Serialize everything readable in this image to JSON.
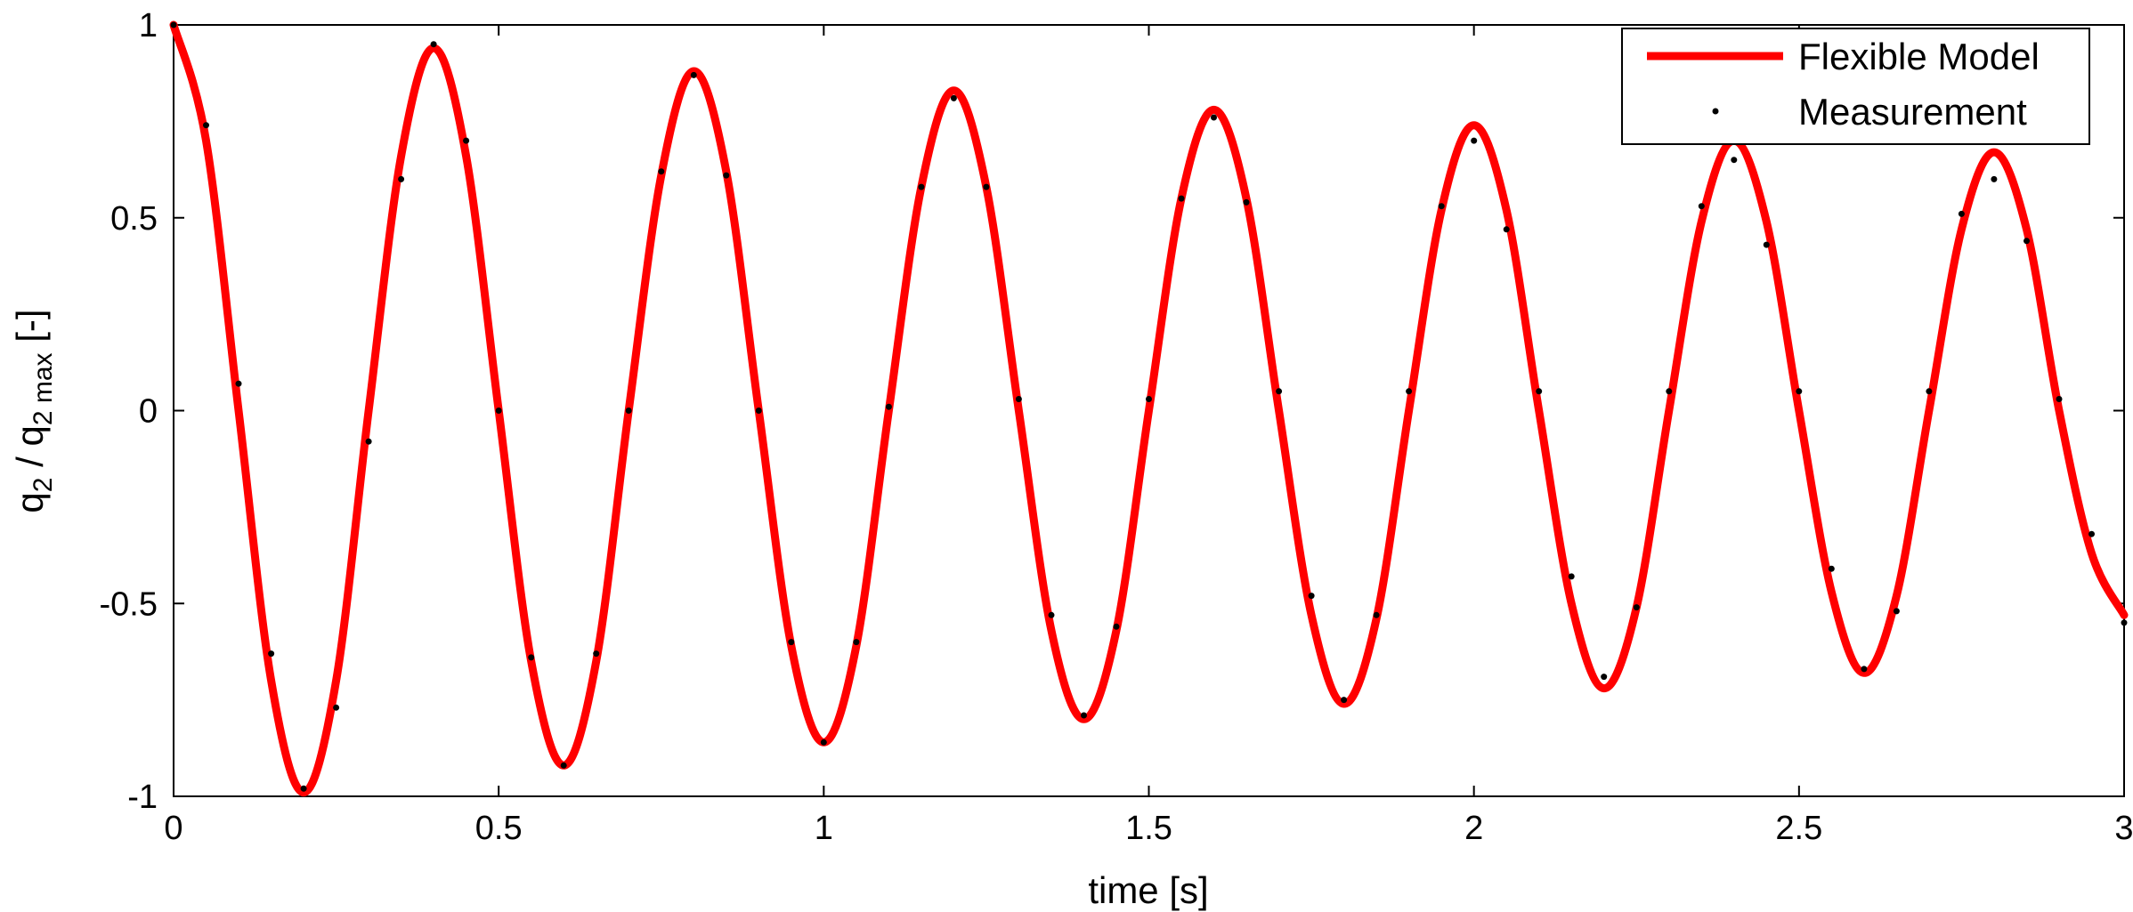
{
  "chart_data": {
    "type": "line",
    "title": "",
    "xlabel": "time [s]",
    "ylabel": {
      "base": "q",
      "sub1": "2",
      "mid": " / q",
      "sub2": "2 max",
      "tail": " [-]"
    },
    "xlim": [
      0,
      3
    ],
    "ylim": [
      -1,
      1
    ],
    "xticks": [
      0,
      0.5,
      1,
      1.5,
      2,
      2.5,
      3
    ],
    "xtick_labels": [
      "0",
      "0.5",
      "1",
      "1.5",
      "2",
      "2.5",
      "3"
    ],
    "yticks": [
      -1,
      -0.5,
      0,
      0.5,
      1
    ],
    "ytick_labels": [
      "-1",
      "-0.5",
      "0",
      "0.5",
      "1"
    ],
    "grid": false,
    "legend_position": "top-right",
    "series": [
      {
        "name": "Flexible Model",
        "style": "line",
        "color": "#ff0000",
        "x": [
          0,
          0.05,
          0.1,
          0.15,
          0.2,
          0.25,
          0.3,
          0.35,
          0.4,
          0.45,
          0.5,
          0.55,
          0.6,
          0.65,
          0.7,
          0.75,
          0.8,
          0.85,
          0.9,
          0.95,
          1.0,
          1.05,
          1.1,
          1.15,
          1.2,
          1.25,
          1.3,
          1.35,
          1.4,
          1.45,
          1.5,
          1.55,
          1.6,
          1.65,
          1.7,
          1.75,
          1.8,
          1.85,
          1.9,
          1.95,
          2.0,
          2.05,
          2.1,
          2.15,
          2.2,
          2.25,
          2.3,
          2.35,
          2.4,
          2.45,
          2.5,
          2.55,
          2.6,
          2.65,
          2.7,
          2.75,
          2.8,
          2.85,
          2.9,
          2.95,
          3.0
        ],
        "y": [
          1.0,
          0.7,
          0.0,
          -0.7,
          -0.99,
          -0.7,
          0.0,
          0.66,
          0.94,
          0.66,
          0.0,
          -0.65,
          -0.92,
          -0.65,
          0.0,
          0.61,
          0.88,
          0.62,
          0.0,
          -0.61,
          -0.86,
          -0.61,
          0.0,
          0.58,
          0.83,
          0.58,
          0.0,
          -0.57,
          -0.8,
          -0.57,
          0.0,
          0.55,
          0.78,
          0.55,
          0.0,
          -0.53,
          -0.76,
          -0.54,
          0.0,
          0.52,
          0.74,
          0.52,
          0.0,
          -0.5,
          -0.72,
          -0.51,
          0.0,
          0.49,
          0.7,
          0.49,
          0.0,
          -0.47,
          -0.68,
          -0.48,
          0.0,
          0.47,
          0.67,
          0.47,
          0.0,
          -0.37,
          -0.53
        ]
      },
      {
        "name": "Measurement",
        "style": "dots",
        "color": "#000000",
        "x": [
          0.0,
          0.05,
          0.1,
          0.15,
          0.2,
          0.25,
          0.3,
          0.35,
          0.4,
          0.45,
          0.5,
          0.55,
          0.6,
          0.65,
          0.7,
          0.75,
          0.8,
          0.85,
          0.9,
          0.95,
          1.0,
          1.05,
          1.1,
          1.15,
          1.2,
          1.25,
          1.3,
          1.35,
          1.4,
          1.45,
          1.5,
          1.55,
          1.6,
          1.65,
          1.7,
          1.75,
          1.8,
          1.85,
          1.9,
          1.95,
          2.0,
          2.05,
          2.1,
          2.15,
          2.2,
          2.25,
          2.3,
          2.35,
          2.4,
          2.45,
          2.5,
          2.55,
          2.6,
          2.65,
          2.7,
          2.75,
          2.8,
          2.85,
          2.9,
          2.95,
          3.0
        ],
        "y": [
          1.0,
          0.74,
          0.07,
          -0.63,
          -0.98,
          -0.77,
          -0.08,
          0.6,
          0.95,
          0.7,
          0.0,
          -0.64,
          -0.92,
          -0.63,
          0.0,
          0.62,
          0.87,
          0.61,
          0.0,
          -0.6,
          -0.86,
          -0.6,
          0.01,
          0.58,
          0.81,
          0.58,
          0.03,
          -0.53,
          -0.79,
          -0.56,
          0.03,
          0.55,
          0.76,
          0.54,
          0.05,
          -0.48,
          -0.75,
          -0.53,
          0.05,
          0.53,
          0.7,
          0.47,
          0.05,
          -0.43,
          -0.69,
          -0.51,
          0.05,
          0.53,
          0.65,
          0.43,
          0.05,
          -0.41,
          -0.67,
          -0.52,
          0.05,
          0.51,
          0.6,
          0.44,
          0.03,
          -0.32,
          -0.55
        ]
      }
    ]
  }
}
